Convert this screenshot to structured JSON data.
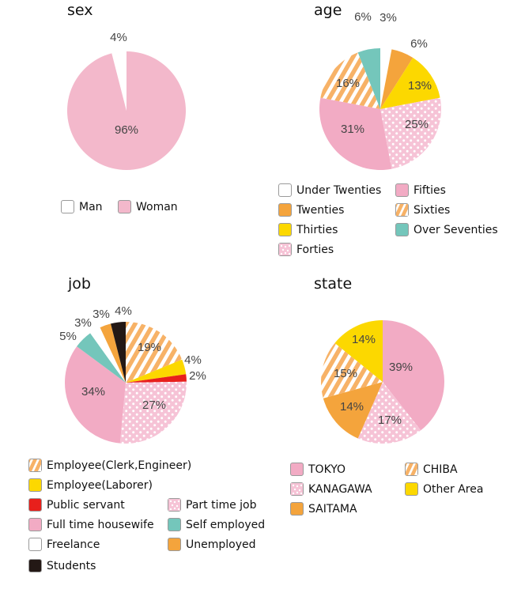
{
  "colors": {
    "white": "#ffffff",
    "pink": "#f2abc4",
    "sex_pink": "#f3b8cb",
    "orange": "#f4a43c",
    "yellow": "#fcd800",
    "teal": "#74c6bb",
    "red": "#e8201c",
    "black": "#231815",
    "stripe_orange": "#f7b267",
    "dot_pink": "#f6c3d6"
  },
  "chart_data": [
    {
      "id": "sex",
      "type": "pie",
      "title": "sex",
      "start": "top",
      "direction": "clockwise",
      "slices": [
        {
          "name": "Woman",
          "value": 96,
          "label": "96%",
          "fill": "sex_pink"
        },
        {
          "name": "Man",
          "value": 4,
          "label": "4%",
          "fill": "white"
        }
      ],
      "legend": [
        {
          "name": "Man",
          "fill": "white"
        },
        {
          "name": "Woman",
          "fill": "sex_pink"
        }
      ]
    },
    {
      "id": "age",
      "type": "pie",
      "title": "age",
      "start": "top",
      "direction": "clockwise",
      "slices": [
        {
          "name": "Under Twenties",
          "value": 3,
          "label": "3%",
          "fill": "white"
        },
        {
          "name": "Twenties",
          "value": 6,
          "label": "6%",
          "fill": "orange"
        },
        {
          "name": "Thirties",
          "value": 13,
          "label": "13%",
          "fill": "yellow"
        },
        {
          "name": "Forties",
          "value": 25,
          "label": "25%",
          "fill": "dots"
        },
        {
          "name": "Fifties",
          "value": 31,
          "label": "31%",
          "fill": "pink"
        },
        {
          "name": "Sixties",
          "value": 16,
          "label": "16%",
          "fill": "stripes"
        },
        {
          "name": "Over Seventies",
          "value": 6,
          "label": "6%",
          "fill": "teal"
        }
      ],
      "legend": [
        {
          "name": "Under Twenties",
          "fill": "white"
        },
        {
          "name": "Twenties",
          "fill": "orange"
        },
        {
          "name": "Thirties",
          "fill": "yellow"
        },
        {
          "name": "Forties",
          "fill": "dots"
        },
        {
          "name": "Fifties",
          "fill": "pink"
        },
        {
          "name": "Sixties",
          "fill": "stripes"
        },
        {
          "name": "Over Seventies",
          "fill": "teal"
        }
      ]
    },
    {
      "id": "job",
      "type": "pie",
      "title": "job",
      "start": "top",
      "direction": "clockwise",
      "slices": [
        {
          "name": "Employee(Clerk,Engineer)",
          "value": 19,
          "label": "19%",
          "fill": "stripes"
        },
        {
          "name": "Employee(Laborer)",
          "value": 4,
          "label": "4%",
          "fill": "yellow"
        },
        {
          "name": "Public servant",
          "value": 2,
          "label": "2%",
          "fill": "red"
        },
        {
          "name": "Part time job",
          "value": 27,
          "label": "27%",
          "fill": "dots"
        },
        {
          "name": "Full time housewife",
          "value": 34,
          "label": "34%",
          "fill": "pink"
        },
        {
          "name": "Self employed",
          "value": 5,
          "label": "5%",
          "fill": "teal"
        },
        {
          "name": "Freelance",
          "value": 3,
          "label": "3%",
          "fill": "white"
        },
        {
          "name": "Unemployed",
          "value": 3,
          "label": "3%",
          "fill": "orange"
        },
        {
          "name": "Students",
          "value": 4,
          "label": "4%",
          "fill": "black"
        }
      ],
      "legend": [
        {
          "name": "Employee(Clerk,Engineer)",
          "fill": "stripes"
        },
        {
          "name": "Employee(Laborer)",
          "fill": "yellow"
        },
        {
          "name": "Public servant",
          "fill": "red"
        },
        {
          "name": "Part time job",
          "fill": "dots"
        },
        {
          "name": "Full time housewife",
          "fill": "pink"
        },
        {
          "name": "Self employed",
          "fill": "teal"
        },
        {
          "name": "Freelance",
          "fill": "white"
        },
        {
          "name": "Unemployed",
          "fill": "orange"
        },
        {
          "name": "Students",
          "fill": "black"
        }
      ]
    },
    {
      "id": "state",
      "type": "pie",
      "title": "state",
      "start": "top",
      "direction": "clockwise",
      "slices": [
        {
          "name": "TOKYO",
          "value": 39,
          "label": "39%",
          "fill": "pink"
        },
        {
          "name": "KANAGAWA",
          "value": 17,
          "label": "17%",
          "fill": "dots"
        },
        {
          "name": "SAITAMA",
          "value": 14,
          "label": "14%",
          "fill": "orange"
        },
        {
          "name": "CHIBA",
          "value": 15,
          "label": "15%",
          "fill": "stripes"
        },
        {
          "name": "Other Area",
          "value": 14,
          "label": "14%",
          "fill": "yellow"
        }
      ],
      "legend": [
        {
          "name": "TOKYO",
          "fill": "pink"
        },
        {
          "name": "KANAGAWA",
          "fill": "dots"
        },
        {
          "name": "SAITAMA",
          "fill": "orange"
        },
        {
          "name": "CHIBA",
          "fill": "stripes"
        },
        {
          "name": "Other Area",
          "fill": "yellow"
        }
      ]
    }
  ]
}
